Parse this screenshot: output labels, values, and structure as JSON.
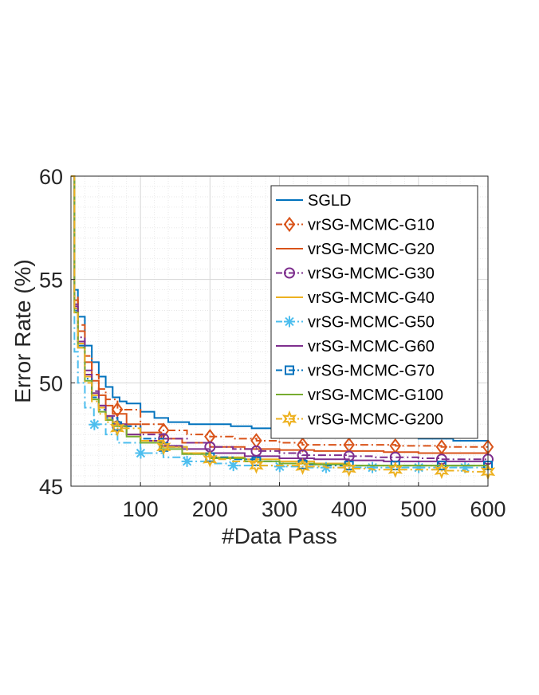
{
  "chart_data": {
    "type": "line",
    "title": "",
    "xlabel": "#Data Pass",
    "ylabel": "Error Rate (%)",
    "xlim": [
      0,
      600
    ],
    "ylim": [
      45,
      60
    ],
    "xticks": [
      100,
      200,
      300,
      400,
      500,
      600
    ],
    "yticks": [
      45,
      50,
      55,
      60
    ],
    "grid": true,
    "minor_grid": true,
    "legend_position": "top-right",
    "series": [
      {
        "name": "SGLD",
        "color": "#0072BD",
        "dash": "solid",
        "marker": "none",
        "x": [
          0,
          5,
          10,
          20,
          30,
          40,
          50,
          60,
          70,
          80,
          100,
          120,
          140,
          170,
          200,
          230,
          260,
          300,
          350,
          400,
          450,
          500,
          550,
          600
        ],
        "y": [
          60,
          54.5,
          53.2,
          51.8,
          51.0,
          50.3,
          49.8,
          49.3,
          49.1,
          49.0,
          48.6,
          48.3,
          48.1,
          48.0,
          48.0,
          47.9,
          47.8,
          47.8,
          47.6,
          47.5,
          47.4,
          47.3,
          47.2,
          47.1
        ]
      },
      {
        "name": "vrSG-MCMC-G10",
        "color": "#D95319",
        "dash": "dashdot",
        "marker": "diamond",
        "x": [
          0,
          5,
          10,
          20,
          30,
          40,
          50,
          67,
          100,
          133,
          167,
          200,
          233,
          267,
          300,
          333,
          367,
          400,
          433,
          467,
          500,
          533,
          567,
          600
        ],
        "y": [
          60,
          54.2,
          52.8,
          51.3,
          50.4,
          49.7,
          49.2,
          48.7,
          48.0,
          47.7,
          47.5,
          47.4,
          47.3,
          47.2,
          47.1,
          47.0,
          47.0,
          47.0,
          47.0,
          46.95,
          46.95,
          46.9,
          46.9,
          46.9
        ]
      },
      {
        "name": "vrSG-MCMC-G20",
        "color": "#D95319",
        "dash": "solid",
        "marker": "none",
        "x": [
          0,
          5,
          10,
          20,
          30,
          40,
          50,
          60,
          80,
          100,
          130,
          160,
          200,
          250,
          300,
          350,
          400,
          450,
          500,
          550,
          600
        ],
        "y": [
          60,
          54.0,
          52.5,
          51.0,
          50.1,
          49.4,
          48.9,
          48.5,
          48.0,
          47.6,
          47.3,
          47.1,
          46.9,
          46.8,
          46.75,
          46.7,
          46.7,
          46.65,
          46.6,
          46.6,
          46.6
        ]
      },
      {
        "name": "vrSG-MCMC-G30",
        "color": "#7E2F8E",
        "dash": "dashdot",
        "marker": "circle",
        "x": [
          0,
          5,
          10,
          20,
          30,
          40,
          50,
          67,
          100,
          133,
          167,
          200,
          233,
          267,
          300,
          333,
          367,
          400,
          433,
          467,
          500,
          533,
          567,
          600
        ],
        "y": [
          60,
          53.8,
          52.2,
          50.6,
          49.6,
          48.9,
          48.4,
          47.9,
          47.5,
          47.3,
          47.1,
          46.9,
          46.8,
          46.7,
          46.6,
          46.5,
          46.5,
          46.45,
          46.4,
          46.4,
          46.35,
          46.3,
          46.3,
          46.3
        ]
      },
      {
        "name": "vrSG-MCMC-G40",
        "color": "#EDB120",
        "dash": "solid",
        "marker": "none",
        "x": [
          0,
          5,
          10,
          20,
          30,
          40,
          50,
          60,
          80,
          100,
          130,
          160,
          200,
          250,
          300,
          350,
          400,
          450,
          500,
          550,
          600
        ],
        "y": [
          60,
          53.6,
          51.9,
          50.3,
          49.4,
          48.8,
          48.3,
          48.0,
          47.5,
          47.2,
          46.9,
          46.6,
          46.4,
          46.3,
          46.2,
          46.1,
          46.0,
          46.0,
          46.0,
          46.0,
          46.0
        ]
      },
      {
        "name": "vrSG-MCMC-G50",
        "color": "#4DBEEE",
        "dash": "dashdot",
        "marker": "asterisk",
        "x": [
          0,
          5,
          10,
          20,
          33,
          50,
          67,
          100,
          133,
          167,
          200,
          233,
          267,
          300,
          333,
          367,
          400,
          450,
          500,
          550,
          600
        ],
        "y": [
          60,
          51.5,
          50.0,
          48.8,
          48.0,
          47.5,
          47.1,
          46.6,
          46.4,
          46.2,
          46.1,
          46.0,
          46.0,
          45.95,
          45.9,
          45.9,
          45.9,
          45.9,
          45.9,
          45.9,
          45.9
        ]
      },
      {
        "name": "vrSG-MCMC-G60",
        "color": "#7E2F8E",
        "dash": "solid",
        "marker": "none",
        "x": [
          0,
          5,
          10,
          20,
          30,
          40,
          50,
          60,
          80,
          100,
          130,
          160,
          200,
          250,
          300,
          350,
          400,
          450,
          500,
          550,
          600
        ],
        "y": [
          60,
          53.7,
          52.0,
          50.4,
          49.5,
          48.9,
          48.4,
          48.0,
          47.5,
          47.2,
          46.95,
          46.8,
          46.6,
          46.45,
          46.35,
          46.3,
          46.25,
          46.2,
          46.2,
          46.2,
          46.2
        ]
      },
      {
        "name": "vrSG-MCMC-G70",
        "color": "#0072BD",
        "dash": "dashdot",
        "marker": "square",
        "x": [
          0,
          5,
          10,
          20,
          30,
          40,
          50,
          67,
          100,
          133,
          167,
          200,
          233,
          267,
          300,
          333,
          367,
          400,
          433,
          467,
          500,
          533,
          567,
          600
        ],
        "y": [
          60,
          53.5,
          51.8,
          50.2,
          49.3,
          48.7,
          48.3,
          47.9,
          47.3,
          46.9,
          46.6,
          46.4,
          46.3,
          46.2,
          46.1,
          46.05,
          46.0,
          46.0,
          46.0,
          46.0,
          46.0,
          46.0,
          46.0,
          46.0
        ]
      },
      {
        "name": "vrSG-MCMC-G100",
        "color": "#77AC30",
        "dash": "solid",
        "marker": "none",
        "x": [
          0,
          5,
          10,
          20,
          30,
          40,
          50,
          60,
          80,
          100,
          130,
          160,
          200,
          250,
          300,
          350,
          400,
          450,
          500,
          550,
          600
        ],
        "y": [
          60,
          53.4,
          51.7,
          50.1,
          49.2,
          48.6,
          48.2,
          47.9,
          47.4,
          47.1,
          46.8,
          46.55,
          46.35,
          46.2,
          46.1,
          46.05,
          46.0,
          46.0,
          46.0,
          46.0,
          46.0
        ]
      },
      {
        "name": "vrSG-MCMC-G200",
        "color": "#EDB120",
        "dash": "dashdot",
        "marker": "hexagram",
        "x": [
          0,
          5,
          10,
          20,
          30,
          40,
          50,
          67,
          100,
          133,
          167,
          200,
          233,
          267,
          300,
          333,
          367,
          400,
          433,
          467,
          500,
          533,
          567,
          600
        ],
        "y": [
          60,
          53.4,
          51.7,
          50.0,
          49.1,
          48.5,
          48.1,
          47.8,
          47.2,
          46.9,
          46.6,
          46.3,
          46.2,
          46.0,
          46.0,
          45.95,
          45.9,
          45.85,
          45.8,
          45.8,
          45.8,
          45.75,
          45.7,
          45.7
        ]
      }
    ]
  }
}
